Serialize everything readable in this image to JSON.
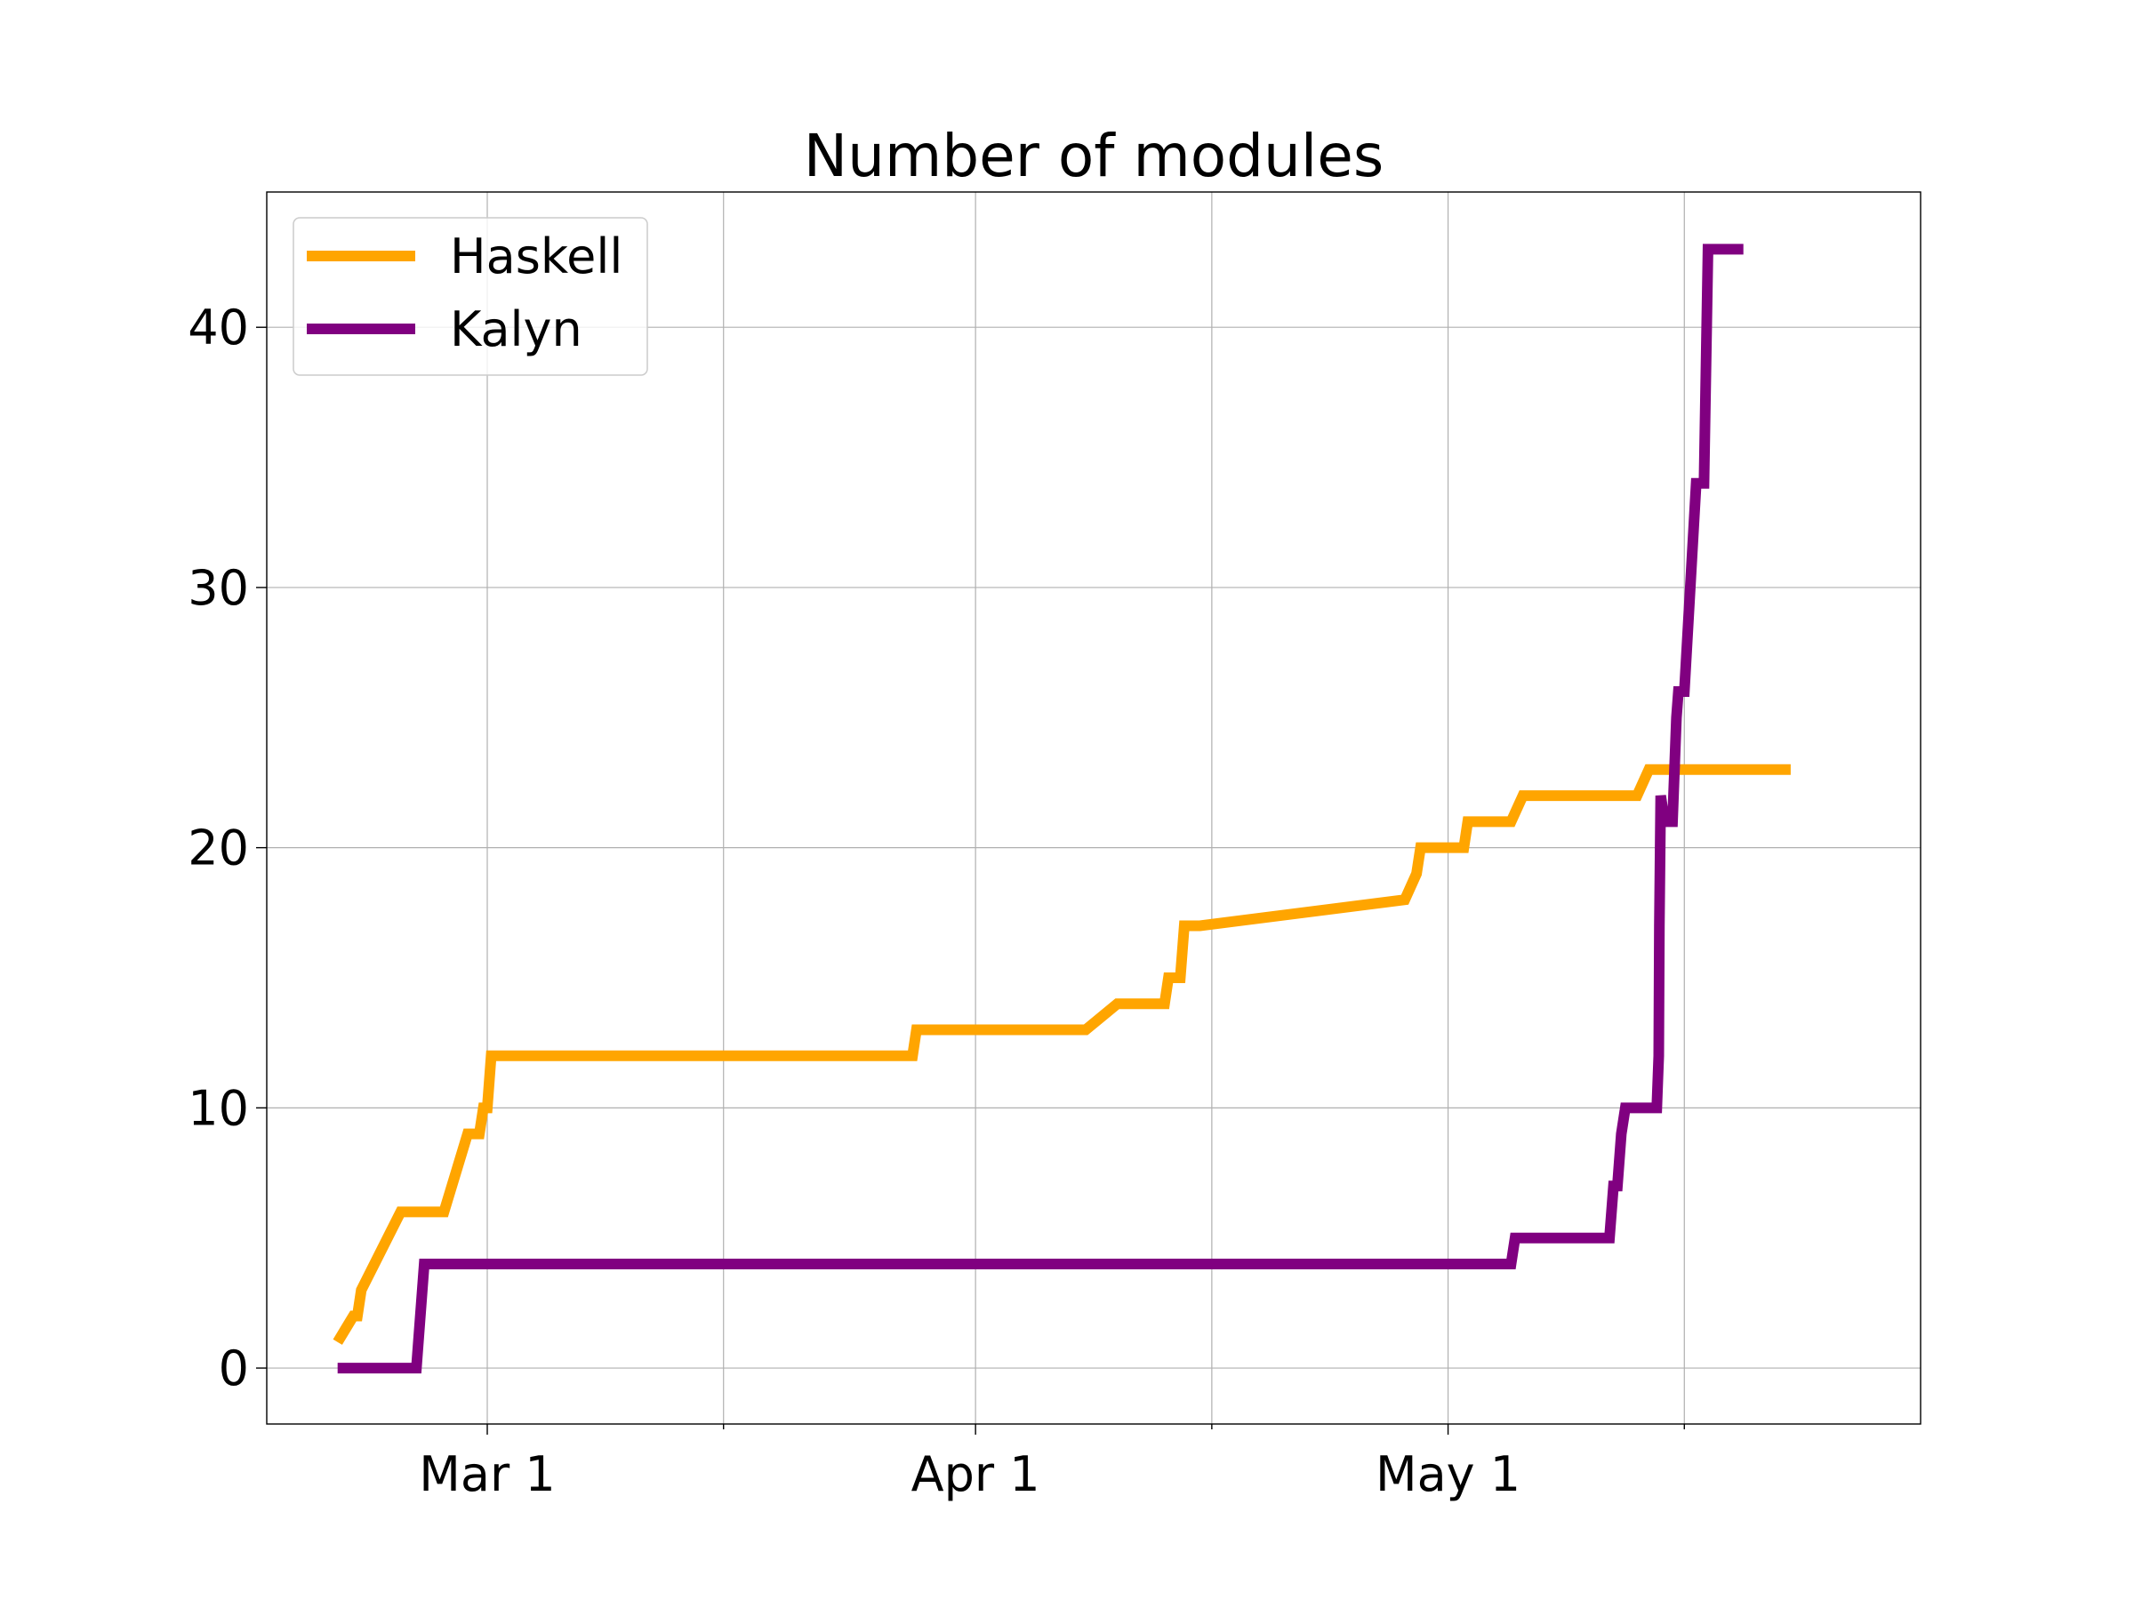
{
  "chart_data": {
    "type": "line",
    "title": "Number of modules",
    "xlabel": "",
    "ylabel": "",
    "x_axis": {
      "type": "date",
      "range": [
        "2020-02-16",
        "2020-05-31"
      ],
      "ticks": [
        {
          "date": "2020-03-01",
          "label": "Mar 1"
        },
        {
          "date": "2020-04-01",
          "label": "Apr 1"
        },
        {
          "date": "2020-05-01",
          "label": "May 1"
        }
      ],
      "minor_ticks": [
        "2020-03-16",
        "2020-04-16",
        "2020-05-16"
      ]
    },
    "y_axis": {
      "range": [
        -2.15,
        45.2
      ],
      "ticks": [
        {
          "value": 0,
          "label": "0"
        },
        {
          "value": 10,
          "label": "10"
        },
        {
          "value": 20,
          "label": "20"
        },
        {
          "value": 30,
          "label": "30"
        },
        {
          "value": 40,
          "label": "40"
        }
      ]
    },
    "grid": true,
    "legend": {
      "position": "top-left"
    },
    "series": [
      {
        "name": "Haskell",
        "color": "#FFA500",
        "points": [
          [
            "2020-02-20T12:00",
            1
          ],
          [
            "2020-02-21T12:00",
            2
          ],
          [
            "2020-02-21T18:00",
            2
          ],
          [
            "2020-02-22T00:00",
            3
          ],
          [
            "2020-02-24T12:00",
            6
          ],
          [
            "2020-02-27T06:00",
            6
          ],
          [
            "2020-02-28T18:00",
            9
          ],
          [
            "2020-02-29T12:00",
            9
          ],
          [
            "2020-02-29T18:00",
            10
          ],
          [
            "2020-03-01T00:00",
            10
          ],
          [
            "2020-03-01T06:00",
            12
          ],
          [
            "2020-03-28T00:00",
            12
          ],
          [
            "2020-03-28T06:00",
            13
          ],
          [
            "2020-04-08T00:00",
            13
          ],
          [
            "2020-04-10T00:00",
            14
          ],
          [
            "2020-04-13T00:00",
            14
          ],
          [
            "2020-04-13T06:00",
            15
          ],
          [
            "2020-04-14T00:00",
            15
          ],
          [
            "2020-04-14T06:00",
            17
          ],
          [
            "2020-04-15T06:00",
            17
          ],
          [
            "2020-04-28T06:00",
            18
          ],
          [
            "2020-04-29T00:00",
            19
          ],
          [
            "2020-04-29T06:00",
            20
          ],
          [
            "2020-05-02T00:00",
            20
          ],
          [
            "2020-05-02T06:00",
            21
          ],
          [
            "2020-05-05T00:00",
            21
          ],
          [
            "2020-05-05T18:00",
            22
          ],
          [
            "2020-05-13T00:00",
            22
          ],
          [
            "2020-05-13T18:00",
            23
          ],
          [
            "2020-05-22T18:00",
            23
          ]
        ]
      },
      {
        "name": "Kalyn",
        "color": "#800080",
        "points": [
          [
            "2020-02-20T12:00",
            0
          ],
          [
            "2020-02-25T12:00",
            0
          ],
          [
            "2020-02-26T00:00",
            4
          ],
          [
            "2020-05-05T00:00",
            4
          ],
          [
            "2020-05-05T06:00",
            5
          ],
          [
            "2020-05-11T06:00",
            5
          ],
          [
            "2020-05-11T12:00",
            7
          ],
          [
            "2020-05-11T18:00",
            7
          ],
          [
            "2020-05-12T00:00",
            9
          ],
          [
            "2020-05-12T06:00",
            10
          ],
          [
            "2020-05-14T06:00",
            10
          ],
          [
            "2020-05-14T09:00",
            12
          ],
          [
            "2020-05-14T10:00",
            17
          ],
          [
            "2020-05-14T12:00",
            22
          ],
          [
            "2020-05-14T18:00",
            21
          ],
          [
            "2020-05-15T06:00",
            21
          ],
          [
            "2020-05-15T12:00",
            25
          ],
          [
            "2020-05-15T15:00",
            26
          ],
          [
            "2020-05-16T00:00",
            26
          ],
          [
            "2020-05-16T18:00",
            34
          ],
          [
            "2020-05-17T06:00",
            34
          ],
          [
            "2020-05-17T12:00",
            43
          ],
          [
            "2020-05-19T18:00",
            43
          ]
        ]
      }
    ]
  }
}
